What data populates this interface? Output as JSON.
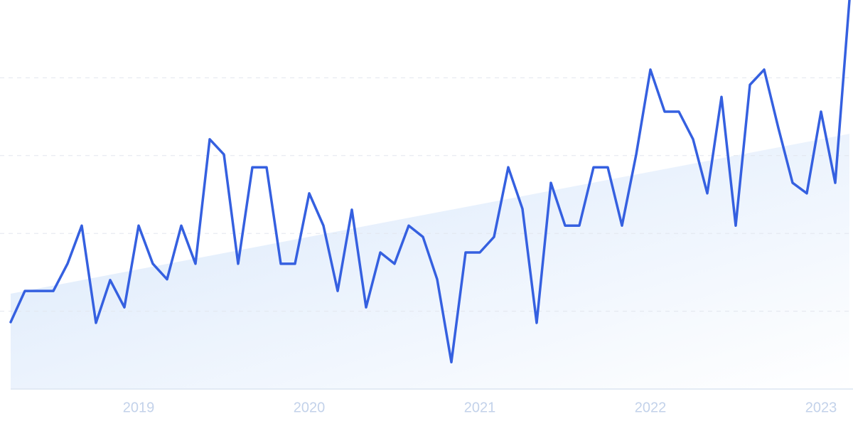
{
  "chart_data": {
    "type": "line",
    "x": [
      2018.25,
      2018.3333,
      2018.4167,
      2018.5,
      2018.5833,
      2018.6667,
      2018.75,
      2018.8333,
      2018.9167,
      2019,
      2019.0833,
      2019.1667,
      2019.25,
      2019.3333,
      2019.4167,
      2019.5,
      2019.5833,
      2019.6667,
      2019.75,
      2019.8333,
      2019.9167,
      2020,
      2020.0833,
      2020.1667,
      2020.25,
      2020.3333,
      2020.4167,
      2020.5,
      2020.5833,
      2020.6667,
      2020.75,
      2020.8333,
      2020.9167,
      2021,
      2021.0833,
      2021.1667,
      2021.25,
      2021.3333,
      2021.4167,
      2021.5,
      2021.5833,
      2021.6667,
      2021.75,
      2021.8333,
      2021.9167,
      2022,
      2022.0833,
      2022.1667,
      2022.25,
      2022.3333,
      2022.4167,
      2022.5,
      2022.5833,
      2022.6667,
      2022.75,
      2022.8333,
      2022.9167,
      2023,
      2023.0833,
      2023.1667
    ],
    "series": [
      {
        "color": "#3560e0",
        "values": [
          17.2,
          25.2,
          25.2,
          25.2,
          32.2,
          42.0,
          17.0,
          28.0,
          21.0,
          42.0,
          32.2,
          28.2,
          42.0,
          32.2,
          64.2,
          60.3,
          32.2,
          57.0,
          57.0,
          32.2,
          32.2,
          50.3,
          42.0,
          25.2,
          46.1,
          21.0,
          35.1,
          32.2,
          42.0,
          39.1,
          28.2,
          6.9,
          35.1,
          35.1,
          39.1,
          57.0,
          46.3,
          17.0,
          53.0,
          42.0,
          42.0,
          57.0,
          57.0,
          42.0,
          60.3,
          82.1,
          71.3,
          71.3,
          64.2,
          50.3,
          75.1,
          42.0,
          78.2,
          82.1,
          67.1,
          53.0,
          50.3,
          71.3,
          53.0,
          100
        ]
      }
    ],
    "trend": {
      "x": [
        2018.25,
        2023.1667
      ],
      "values": [
        24.5,
        65.6
      ],
      "color": "#d8e7fb"
    },
    "xlim": [
      2018.25,
      2023.1667
    ],
    "xticks": [
      2019,
      2020,
      2021,
      2022,
      2023
    ],
    "ylim": [
      0,
      100
    ],
    "yticks": [
      20,
      40,
      60,
      80
    ],
    "grid": true
  }
}
